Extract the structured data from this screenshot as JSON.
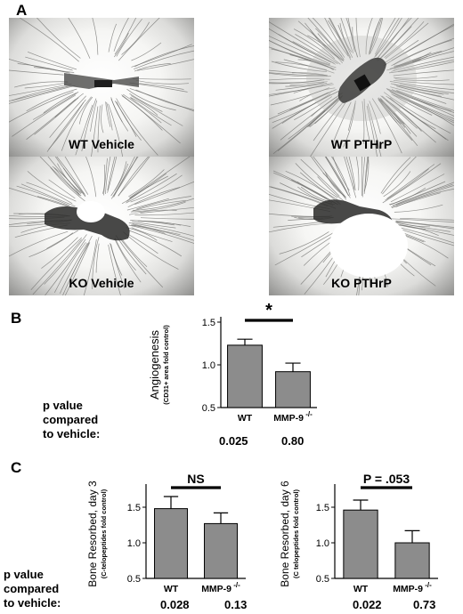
{
  "panel_a": {
    "letter": "A",
    "images": [
      {
        "label": "WT Vehicle",
        "vessel_density": "sparse",
        "bone_shape": "thin"
      },
      {
        "label": "WT PTHrP",
        "vessel_density": "dense",
        "bone_shape": "thick"
      },
      {
        "label": "KO Vehicle",
        "vessel_density": "medium",
        "bone_shape": "hollow"
      },
      {
        "label": "KO PTHrP",
        "vessel_density": "medium",
        "bone_shape": "hollow-large"
      }
    ]
  },
  "panel_b": {
    "letter": "B",
    "pvalue_heading": [
      "p value",
      "compared",
      "to vehicle:"
    ],
    "pvalues": [
      "0.025",
      "0.80"
    ]
  },
  "panel_c": {
    "letter": "C",
    "pvalue_heading": [
      "p value",
      "compared",
      "to vehicle:"
    ],
    "pvalues_day3": [
      "0.028",
      "0.13"
    ],
    "pvalues_day6": [
      "0.022",
      "0.73"
    ]
  },
  "chart_data": [
    {
      "id": "angiogenesis",
      "type": "bar",
      "categories": [
        "WT",
        "MMP-9"
      ],
      "category_superscripts": [
        "",
        "-/-"
      ],
      "values": [
        1.23,
        0.92
      ],
      "errors": [
        0.07,
        0.1
      ],
      "ylabel": "Angiogenesis",
      "ylabel_sub": "(CD31+ area fold control)",
      "ylim": [
        0.5,
        1.5
      ],
      "yticks": [
        "0.5",
        "1.0",
        "1.5"
      ],
      "annotation": "*",
      "bar_color": "#8c8c8c"
    },
    {
      "id": "resorption-day3",
      "type": "bar",
      "categories": [
        "WT",
        "MMP-9"
      ],
      "category_superscripts": [
        "",
        "-/-"
      ],
      "values": [
        1.48,
        1.27
      ],
      "errors": [
        0.17,
        0.15
      ],
      "ylabel": "Bone Resorbed, day 3",
      "ylabel_sub": "(C-telopeptides fold control)",
      "ylim": [
        0.5,
        1.75
      ],
      "yticks": [
        "0.5",
        "1.0",
        "1.5"
      ],
      "annotation": "NS",
      "bar_color": "#8c8c8c"
    },
    {
      "id": "resorption-day6",
      "type": "bar",
      "categories": [
        "WT",
        "MMP-9"
      ],
      "category_superscripts": [
        "",
        "-/-"
      ],
      "values": [
        1.46,
        1.0
      ],
      "errors": [
        0.14,
        0.17
      ],
      "ylabel": "Bone Resorbed, day 6",
      "ylabel_sub": "(C telopeptides fold control)",
      "ylim": [
        0.5,
        1.75
      ],
      "yticks": [
        "0.5",
        "1.0",
        "1.5"
      ],
      "annotation": "P = .053",
      "bar_color": "#8c8c8c"
    }
  ]
}
